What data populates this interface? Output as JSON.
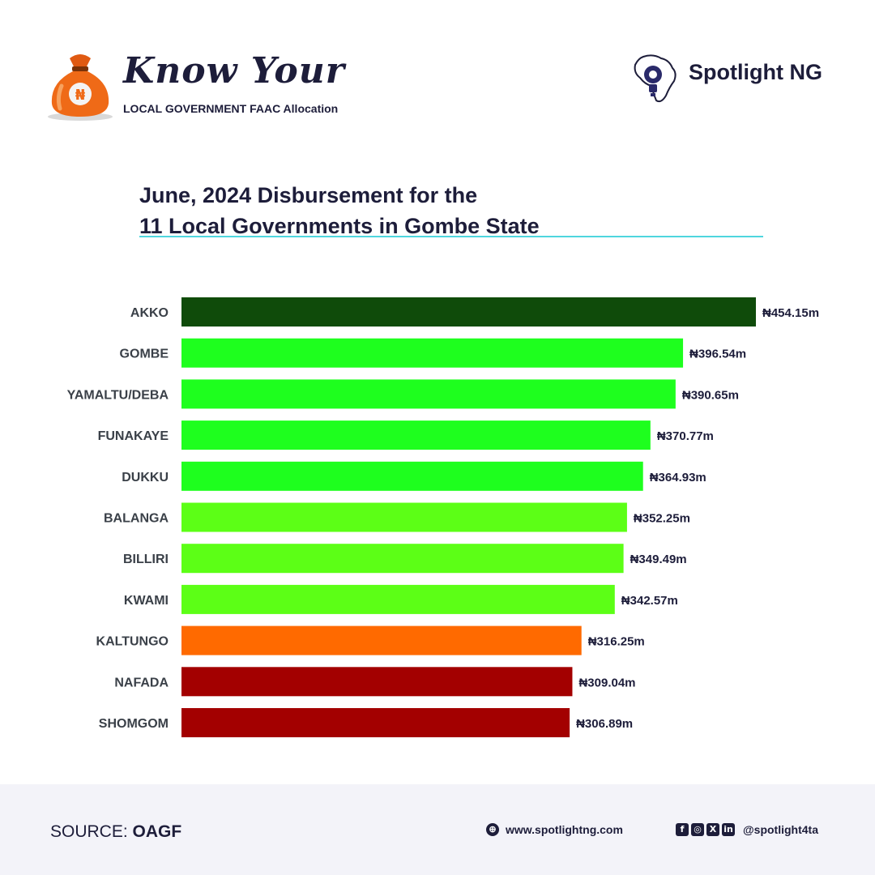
{
  "header": {
    "brand_script": "Know Your",
    "brand_sub": "LOCAL GOVERNMENT FAAC Allocation",
    "publisher": "Spotlight NG",
    "bag_icon": "money-bag-naira-icon",
    "publisher_icon": "africa-bulb-gear-icon"
  },
  "title": {
    "line1": "June, 2024 Disbursement for the",
    "line2": "11 Local Governments in Gombe State"
  },
  "chart_data": {
    "type": "bar",
    "orientation": "horizontal",
    "categories": [
      "AKKO",
      "GOMBE",
      "YAMALTU/DEBA",
      "FUNAKAYE",
      "DUKKU",
      "BALANGA",
      "BILLIRI",
      "KWAMI",
      "KALTUNGO",
      "NAFADA",
      "SHOMGOM"
    ],
    "values": [
      454.15,
      396.54,
      390.65,
      370.77,
      364.93,
      352.25,
      349.49,
      342.57,
      316.25,
      309.04,
      306.89
    ],
    "labels": [
      "₦454.15m",
      "₦396.54m",
      "₦390.65m",
      "₦370.77m",
      "₦364.93m",
      "₦352.25m",
      "₦349.49m",
      "₦342.57m",
      "₦316.25m",
      "₦309.04m",
      "₦306.89m"
    ],
    "colors": [
      "#0f4b0a",
      "#1eff1e",
      "#1eff1e",
      "#1eff1e",
      "#1eff1e",
      "#5cff16",
      "#5cff16",
      "#5cff16",
      "#ff6a00",
      "#a30000",
      "#a30000"
    ],
    "xlim": [
      0,
      454.15
    ],
    "grid": false,
    "legend": "none"
  },
  "footer": {
    "source_label": "SOURCE:",
    "source_value": "OAGF",
    "website": "www.spotlightng.com",
    "handle": "@spotlight4ta",
    "social_icons": [
      "facebook-icon",
      "instagram-icon",
      "x-icon",
      "linkedin-icon"
    ]
  }
}
